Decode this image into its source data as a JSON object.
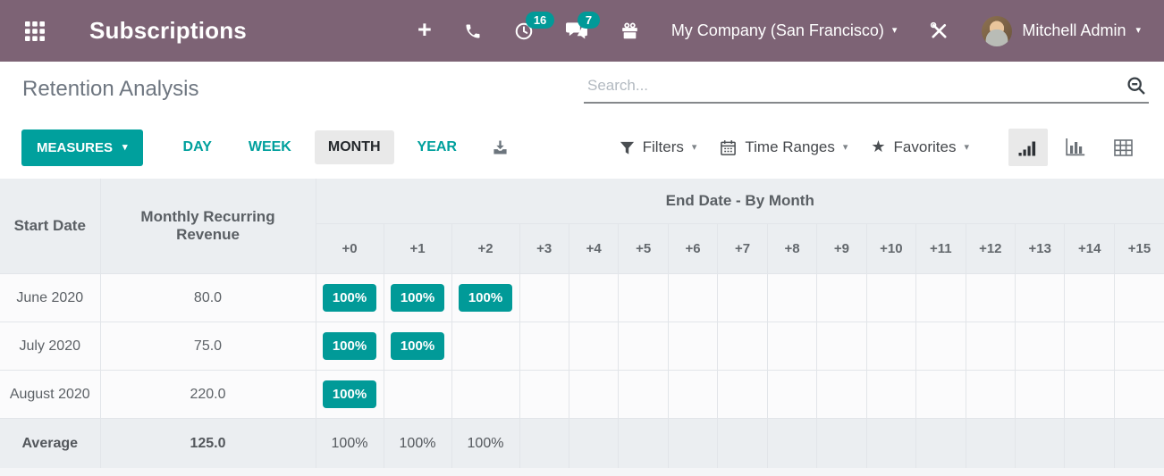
{
  "navbar": {
    "app_title": "Subscriptions",
    "plus_label": "+",
    "activity_badge": "16",
    "message_badge": "7",
    "company_label": "My Company (San Francisco)",
    "user_name": "Mitchell Admin",
    "caret": "▾"
  },
  "page_title": "Retention Analysis",
  "search": {
    "placeholder": "Search..."
  },
  "toolbar": {
    "measures_label": "MEASURES",
    "intervals": [
      {
        "label": "DAY",
        "active": false
      },
      {
        "label": "WEEK",
        "active": false
      },
      {
        "label": "MONTH",
        "active": true
      },
      {
        "label": "YEAR",
        "active": false
      }
    ],
    "filters_label": "Filters",
    "time_ranges_label": "Time Ranges",
    "favorites_label": "Favorites",
    "star_glyph": "★",
    "view_switcher": [
      "cohort",
      "graph",
      "pivot"
    ],
    "active_view": "cohort"
  },
  "icons": {
    "apps": "apps-grid-icon",
    "plus": "plus-icon",
    "phone": "phone-icon",
    "activity": "clock-icon",
    "messages": "chat-icon",
    "gift": "gift-icon",
    "debug": "tools-icon",
    "download": "download-icon",
    "filter": "funnel-icon",
    "time_ranges": "calendar-icon",
    "favorites": "star-icon",
    "search": "magnifier-minus-icon",
    "cohort_view": "signal-bars-icon",
    "graph_view": "bar-chart-icon",
    "pivot_view": "grid-icon"
  },
  "cohort_table": {
    "row_header": "Start Date",
    "measure_header": "Monthly Recurring Revenue",
    "column_group_header": "End Date - By Month",
    "period_columns": [
      "+0",
      "+1",
      "+2",
      "+3",
      "+4",
      "+5",
      "+6",
      "+7",
      "+8",
      "+9",
      "+10",
      "+11",
      "+12",
      "+13",
      "+14",
      "+15"
    ],
    "rows": [
      {
        "start_date": "June 2020",
        "mrr": "80.0",
        "retention": [
          "100%",
          "100%",
          "100%"
        ]
      },
      {
        "start_date": "July 2020",
        "mrr": "75.0",
        "retention": [
          "100%",
          "100%"
        ]
      },
      {
        "start_date": "August 2020",
        "mrr": "220.0",
        "retention": [
          "100%"
        ]
      }
    ],
    "average": {
      "label": "Average",
      "mrr": "125.0",
      "retention": [
        "100%",
        "100%",
        "100%"
      ]
    }
  },
  "colors": {
    "accent": "#00a09d",
    "navbar": "#7d6375",
    "badge": "#019a98",
    "active_background": "#e9e9e9",
    "table_header_background": "#ebeef1"
  }
}
